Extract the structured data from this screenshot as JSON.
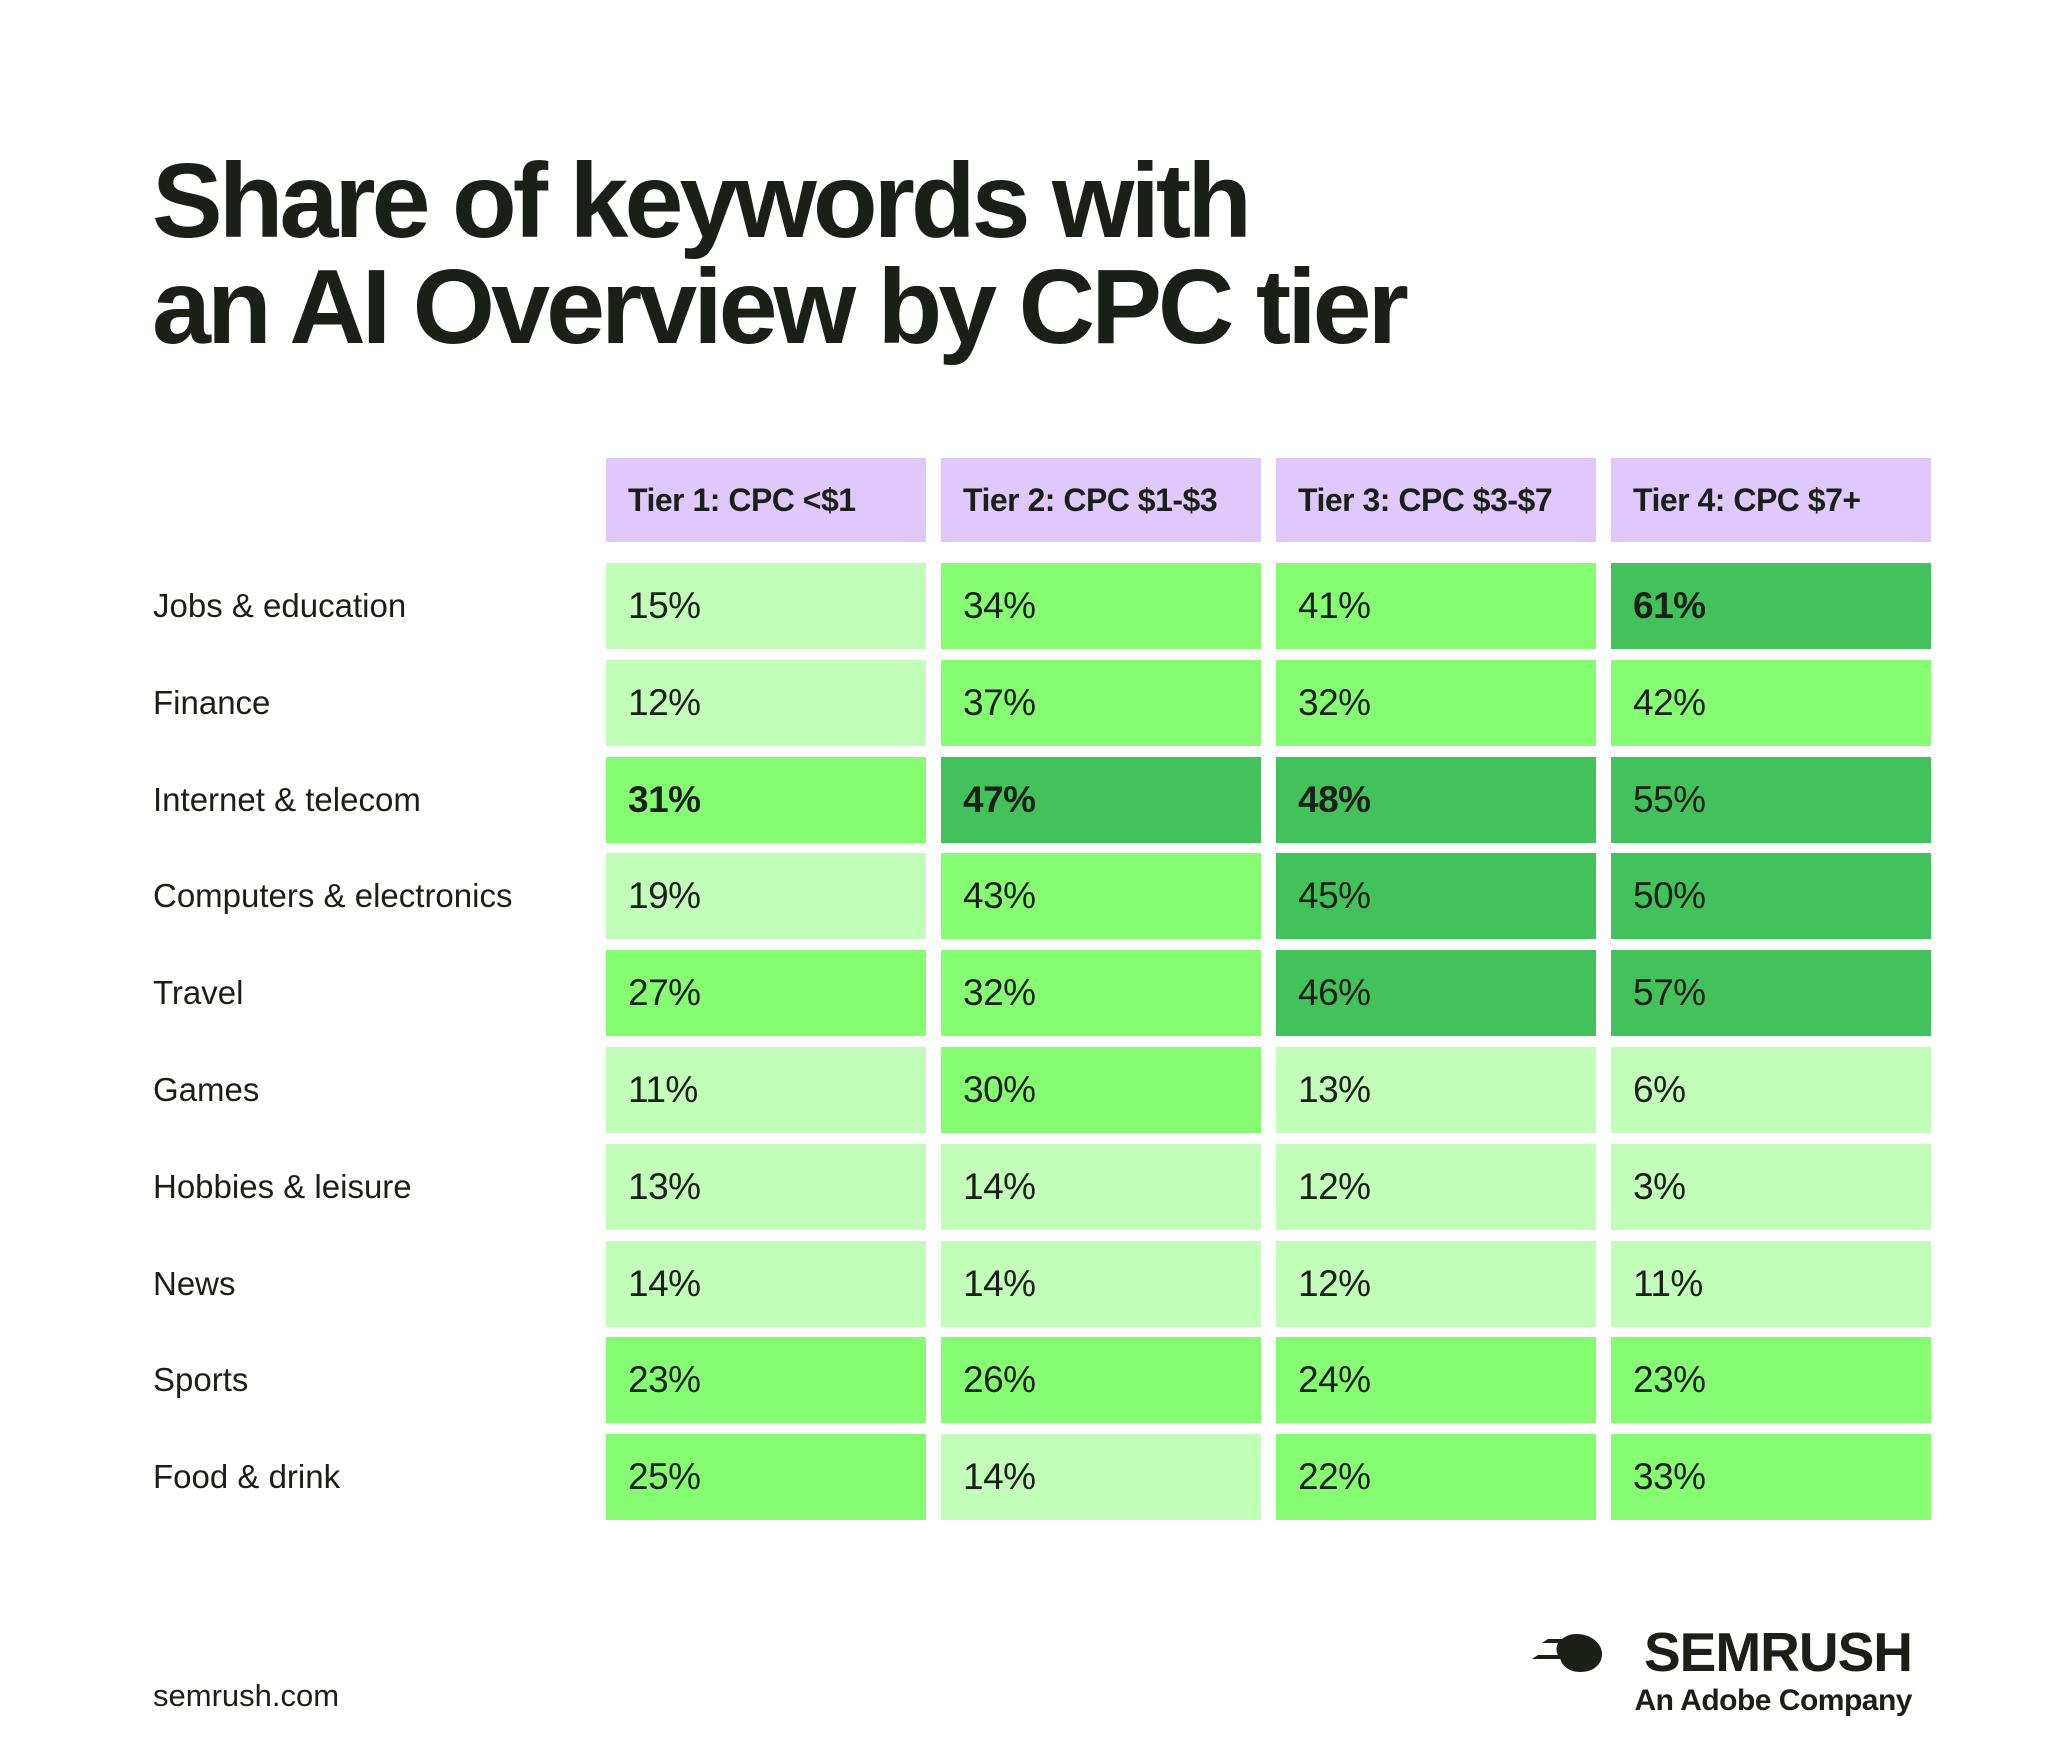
{
  "title_lines": [
    "Share of keywords with",
    "an AI Overview by CPC tier"
  ],
  "chart_data": {
    "type": "heatmap",
    "columns": [
      "Tier 1: CPC <$1",
      "Tier 2: CPC $1-$3",
      "Tier 3: CPC $3-$7",
      "Tier 4: CPC $7+"
    ],
    "rows": [
      {
        "label": "Jobs & education",
        "values": [
          15,
          34,
          41,
          61
        ]
      },
      {
        "label": "Finance",
        "values": [
          12,
          37,
          32,
          42
        ]
      },
      {
        "label": "Internet & telecom",
        "values": [
          31,
          47,
          48,
          55
        ]
      },
      {
        "label": "Computers & electronics",
        "values": [
          19,
          43,
          45,
          50
        ]
      },
      {
        "label": "Travel",
        "values": [
          27,
          32,
          46,
          57
        ]
      },
      {
        "label": "Games",
        "values": [
          11,
          30,
          13,
          6
        ]
      },
      {
        "label": "Hobbies & leisure",
        "values": [
          13,
          14,
          12,
          3
        ]
      },
      {
        "label": "News",
        "values": [
          14,
          14,
          12,
          11
        ]
      },
      {
        "label": "Sports",
        "values": [
          23,
          26,
          24,
          23
        ]
      },
      {
        "label": "Food & drink",
        "values": [
          25,
          14,
          22,
          33
        ]
      }
    ],
    "value_suffix": "%",
    "bold_cells": [
      [
        0,
        3
      ],
      [
        2,
        0
      ],
      [
        2,
        1
      ],
      [
        2,
        2
      ]
    ],
    "color_scale": [
      {
        "min": 0,
        "max": 19,
        "color": "#c2fdb9"
      },
      {
        "min": 20,
        "max": 44,
        "color": "#85fc71"
      },
      {
        "min": 45,
        "max": 100,
        "color": "#43c15a"
      }
    ],
    "overrides": [
      {
        "row": 3,
        "col": 1,
        "color": "#85fc71"
      },
      {
        "row": 1,
        "col": 2,
        "color": "#85fc71"
      },
      {
        "row": 0,
        "col": 3,
        "color": "#43c15a"
      },
      {
        "row": 2,
        "col": 0,
        "color": "#85fc71"
      },
      {
        "row": 2,
        "col": 1,
        "color": "#43c15a"
      }
    ],
    "header_color": "#dfc8fb"
  },
  "footer": {
    "url": "semrush.com"
  },
  "logo": {
    "name": "semrush-fireball-icon",
    "wordmark": "SEMRUSH",
    "tagline": "An Adobe Company"
  }
}
